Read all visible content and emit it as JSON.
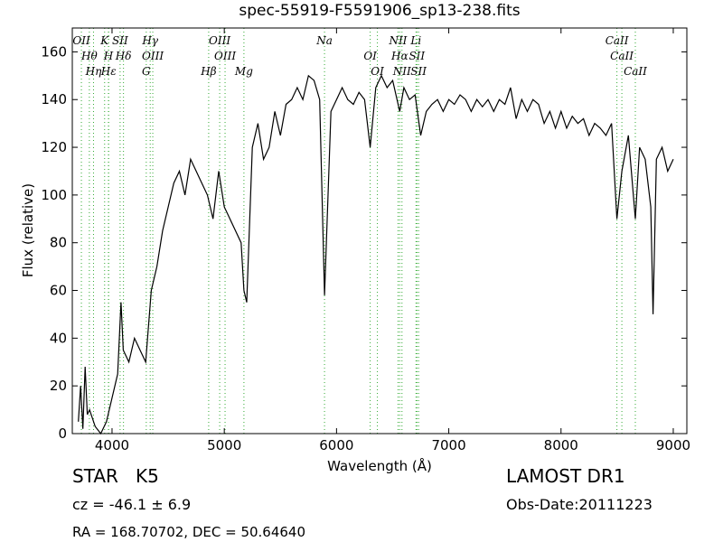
{
  "chart_data": {
    "type": "line",
    "title": "spec-55919-F5591906_sp13-238.fits",
    "x_label": "Wavelength (Å)",
    "y_label": "Flux (relative)",
    "xlim": [
      3646,
      9121
    ],
    "ylim": [
      0,
      170
    ],
    "xticks": [
      4000,
      5000,
      6000,
      7000,
      8000,
      9000
    ],
    "yticks": [
      0,
      20,
      40,
      60,
      80,
      100,
      120,
      140,
      160
    ],
    "grid": false,
    "color": "#000000",
    "line_color": "#33aa33",
    "x": [
      3700,
      3720,
      3740,
      3760,
      3780,
      3800,
      3850,
      3900,
      3950,
      4000,
      4050,
      4080,
      4100,
      4150,
      4200,
      4250,
      4300,
      4350,
      4400,
      4450,
      4500,
      4550,
      4600,
      4650,
      4700,
      4750,
      4800,
      4850,
      4900,
      4950,
      5000,
      5050,
      5100,
      5150,
      5175,
      5200,
      5250,
      5300,
      5350,
      5400,
      5450,
      5500,
      5550,
      5600,
      5650,
      5700,
      5750,
      5800,
      5850,
      5893,
      5950,
      6000,
      6050,
      6100,
      6150,
      6200,
      6250,
      6300,
      6350,
      6400,
      6450,
      6500,
      6563,
      6600,
      6650,
      6700,
      6750,
      6800,
      6850,
      6900,
      6950,
      7000,
      7050,
      7100,
      7150,
      7200,
      7250,
      7300,
      7350,
      7400,
      7450,
      7500,
      7550,
      7600,
      7650,
      7700,
      7750,
      7800,
      7850,
      7900,
      7950,
      8000,
      8050,
      8100,
      8150,
      8200,
      8250,
      8300,
      8350,
      8400,
      8450,
      8498,
      8542,
      8600,
      8662,
      8700,
      8750,
      8800,
      8820,
      8850,
      8900,
      8950,
      9000
    ],
    "values": [
      5,
      20,
      2,
      28,
      8,
      10,
      3,
      0,
      5,
      15,
      25,
      55,
      35,
      30,
      40,
      35,
      30,
      60,
      70,
      85,
      95,
      105,
      110,
      100,
      115,
      110,
      105,
      100,
      90,
      110,
      95,
      90,
      85,
      80,
      60,
      55,
      120,
      130,
      115,
      120,
      135,
      125,
      138,
      140,
      145,
      140,
      150,
      148,
      140,
      58,
      135,
      140,
      145,
      140,
      138,
      143,
      140,
      120,
      145,
      150,
      145,
      148,
      135,
      145,
      140,
      142,
      125,
      135,
      138,
      140,
      135,
      140,
      138,
      142,
      140,
      135,
      140,
      137,
      140,
      135,
      140,
      138,
      145,
      132,
      140,
      135,
      140,
      138,
      130,
      135,
      128,
      135,
      128,
      133,
      130,
      132,
      125,
      130,
      128,
      125,
      130,
      90,
      110,
      125,
      90,
      120,
      115,
      95,
      50,
      115,
      120,
      110,
      115
    ],
    "lines": [
      {
        "label": "OII",
        "wavelength": 3727
      },
      {
        "label": "Hθ",
        "wavelength": 3798
      },
      {
        "label": "Hη",
        "wavelength": 3835
      },
      {
        "label": "K",
        "wavelength": 3934
      },
      {
        "label": "Hε",
        "wavelength": 3970
      },
      {
        "label": "H",
        "wavelength": 3968
      },
      {
        "label": "SII",
        "wavelength": 4072
      },
      {
        "label": "Hδ",
        "wavelength": 4102
      },
      {
        "label": "G",
        "wavelength": 4305
      },
      {
        "label": "Hγ",
        "wavelength": 4340
      },
      {
        "label": "OIII",
        "wavelength": 4363
      },
      {
        "label": "Hβ",
        "wavelength": 4861
      },
      {
        "label": "OIII",
        "wavelength": 4959
      },
      {
        "label": "OIII",
        "wavelength": 5007
      },
      {
        "label": "Mg",
        "wavelength": 5175
      },
      {
        "label": "Na",
        "wavelength": 5893
      },
      {
        "label": "OI",
        "wavelength": 6300
      },
      {
        "label": "OI",
        "wavelength": 6364
      },
      {
        "label": "NII",
        "wavelength": 6548
      },
      {
        "label": "Hα",
        "wavelength": 6563
      },
      {
        "label": "NII",
        "wavelength": 6583
      },
      {
        "label": "Li",
        "wavelength": 6708
      },
      {
        "label": "SII",
        "wavelength": 6716
      },
      {
        "label": "SII",
        "wavelength": 6731
      },
      {
        "label": "CaII",
        "wavelength": 8498
      },
      {
        "label": "CaII",
        "wavelength": 8542
      },
      {
        "label": "CaII",
        "wavelength": 8662
      }
    ]
  },
  "info": {
    "class": "STAR",
    "subclass": "K5",
    "cz": "cz = -46.1 ± 6.9",
    "coords": "RA = 168.70702, DEC = 50.64640",
    "survey": "LAMOST DR1",
    "obs_date": "Obs-Date:20111223"
  }
}
